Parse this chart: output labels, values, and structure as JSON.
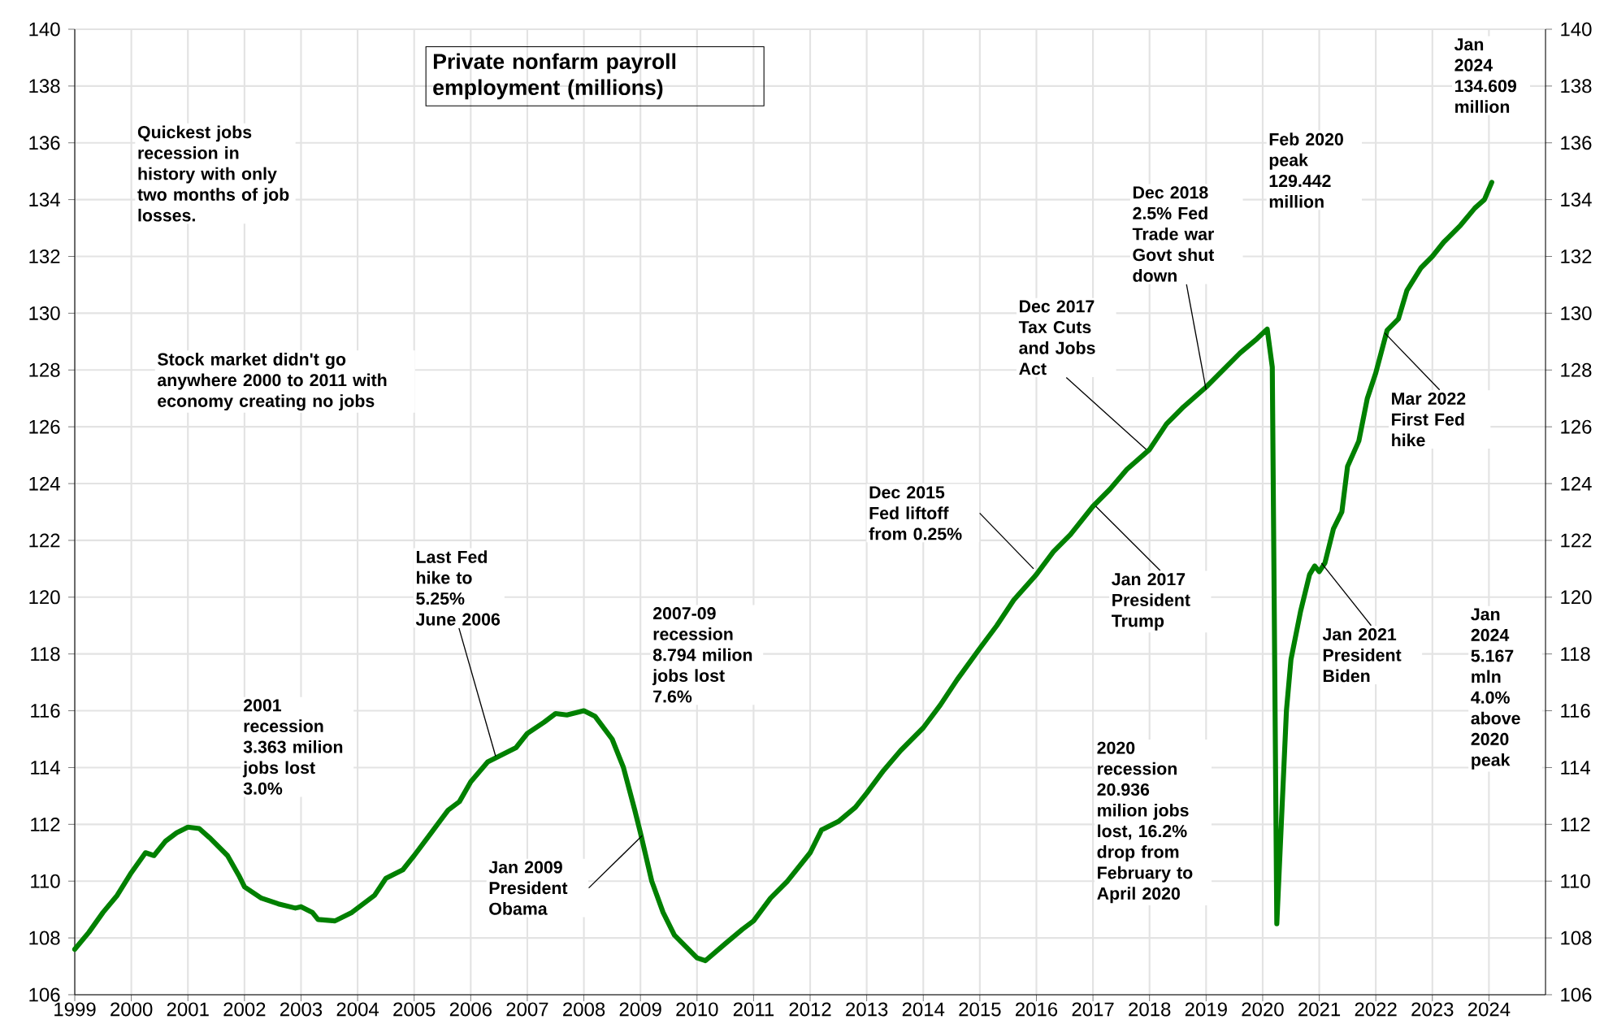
{
  "chart_data": {
    "type": "line",
    "title": "Private nonfarm payroll employment (millions)",
    "x": [
      1999.0,
      1999.25,
      1999.5,
      1999.75,
      2000.0,
      2000.25,
      2000.4,
      2000.6,
      2000.8,
      2001.0,
      2001.2,
      2001.4,
      2001.7,
      2001.9,
      2002.0,
      2002.3,
      2002.6,
      2002.9,
      2003.0,
      2003.2,
      2003.3,
      2003.6,
      2003.9,
      2004.1,
      2004.3,
      2004.5,
      2004.8,
      2005.0,
      2005.3,
      2005.6,
      2005.8,
      2006.0,
      2006.3,
      2006.6,
      2006.8,
      2007.0,
      2007.3,
      2007.5,
      2007.7,
      2008.0,
      2008.2,
      2008.5,
      2008.7,
      2008.9,
      2009.0,
      2009.2,
      2009.4,
      2009.6,
      2009.8,
      2010.0,
      2010.15,
      2010.5,
      2010.8,
      2011.0,
      2011.3,
      2011.6,
      2012.0,
      2012.2,
      2012.5,
      2012.8,
      2013.0,
      2013.3,
      2013.6,
      2014.0,
      2014.3,
      2014.6,
      2015.0,
      2015.3,
      2015.6,
      2016.0,
      2016.3,
      2016.6,
      2017.0,
      2017.3,
      2017.6,
      2018.0,
      2018.3,
      2018.6,
      2019.0,
      2019.3,
      2019.6,
      2019.9,
      2020.08,
      2020.17,
      2020.25,
      2020.42,
      2020.5,
      2020.67,
      2020.83,
      2020.92,
      2021.0,
      2021.1,
      2021.25,
      2021.4,
      2021.5,
      2021.7,
      2021.85,
      2022.0,
      2022.2,
      2022.4,
      2022.55,
      2022.8,
      2023.0,
      2023.2,
      2023.5,
      2023.75,
      2023.92,
      2024.05
    ],
    "values": [
      107.6,
      108.2,
      108.9,
      109.5,
      110.3,
      111.0,
      110.9,
      111.4,
      111.7,
      111.9,
      111.85,
      111.5,
      110.9,
      110.2,
      109.8,
      109.4,
      109.2,
      109.05,
      109.1,
      108.9,
      108.65,
      108.6,
      108.9,
      109.2,
      109.5,
      110.1,
      110.4,
      110.9,
      111.7,
      112.5,
      112.8,
      113.5,
      114.2,
      114.5,
      114.7,
      115.2,
      115.6,
      115.9,
      115.85,
      116.0,
      115.8,
      115.0,
      114.0,
      112.5,
      111.7,
      110.0,
      108.9,
      108.1,
      107.7,
      107.3,
      107.2,
      107.8,
      108.3,
      108.6,
      109.4,
      110.0,
      111.0,
      111.8,
      112.1,
      112.6,
      113.1,
      113.9,
      114.6,
      115.4,
      116.2,
      117.1,
      118.2,
      119.0,
      119.9,
      120.8,
      121.6,
      122.2,
      123.2,
      123.8,
      124.5,
      125.2,
      126.1,
      126.7,
      127.4,
      128.0,
      128.6,
      129.1,
      129.442,
      128.1,
      108.5,
      116.0,
      117.8,
      119.5,
      120.8,
      121.1,
      120.9,
      121.2,
      122.4,
      123.0,
      124.6,
      125.5,
      127.0,
      127.9,
      129.4,
      129.8,
      130.8,
      131.6,
      132.0,
      132.5,
      133.1,
      133.7,
      134.0,
      134.609
    ],
    "color": "#008000",
    "xlim": [
      1999,
      2025
    ],
    "xticks": [
      1999,
      2000,
      2001,
      2002,
      2003,
      2004,
      2005,
      2006,
      2007,
      2008,
      2009,
      2010,
      2011,
      2012,
      2013,
      2014,
      2015,
      2016,
      2017,
      2018,
      2019,
      2020,
      2021,
      2022,
      2023,
      2024
    ],
    "ylim": [
      106,
      140
    ],
    "yticks": [
      106,
      108,
      110,
      112,
      114,
      116,
      118,
      120,
      122,
      124,
      126,
      128,
      130,
      132,
      134,
      136,
      138,
      140
    ],
    "y2lim": [
      106,
      140
    ],
    "y2ticks": [
      106,
      108,
      110,
      112,
      114,
      116,
      118,
      120,
      122,
      124,
      126,
      128,
      130,
      132,
      134,
      136,
      138,
      140
    ],
    "grid": true,
    "marker": "none",
    "line_style": "solid",
    "annotations": [
      "Quickest jobs recession in history with only two months of job losses.",
      "Stock market didn't go anywhere 2000 to 2011 with economy creating no jobs",
      "2001 recession 3.363 milion jobs lost 3.0%",
      {
        "text": "Last Fed hike to 5.25% June 2006",
        "x": 2006.44,
        "y": 114.4
      },
      "2007-09 recession 8.794 milion jobs lost 7.6%",
      {
        "text": "Jan 2009 President Obama",
        "x": 2009.03,
        "y": 111.6
      },
      {
        "text": "Dec 2015 Fed liftoff from 0.25%",
        "x": 2015.95,
        "y": 121.0
      },
      {
        "text": "Jan 2017 President Trump",
        "x": 2017.05,
        "y": 123.2
      },
      {
        "text": "Dec 2017 Tax Cuts and Jobs Act",
        "x": 2017.94,
        "y": 125.2
      },
      {
        "text": "Dec 2018 2.5% Fed Trade war Govt shut down",
        "x": 2019.0,
        "y": 127.3
      },
      "Feb 2020 peak 129.442 million",
      "2020 recession 20.936 milion jobs lost, 16.2% drop from February to April 2020",
      {
        "text": "Jan 2021 President Biden",
        "x": 2021.04,
        "y": 121.2
      },
      {
        "text": "Mar 2022 First Fed hike",
        "x": 2022.16,
        "y": 129.3
      },
      "Jan 2024 134.609 million",
      "Jan 2024 5.167 mln 4.0% above 2020 peak"
    ]
  }
}
